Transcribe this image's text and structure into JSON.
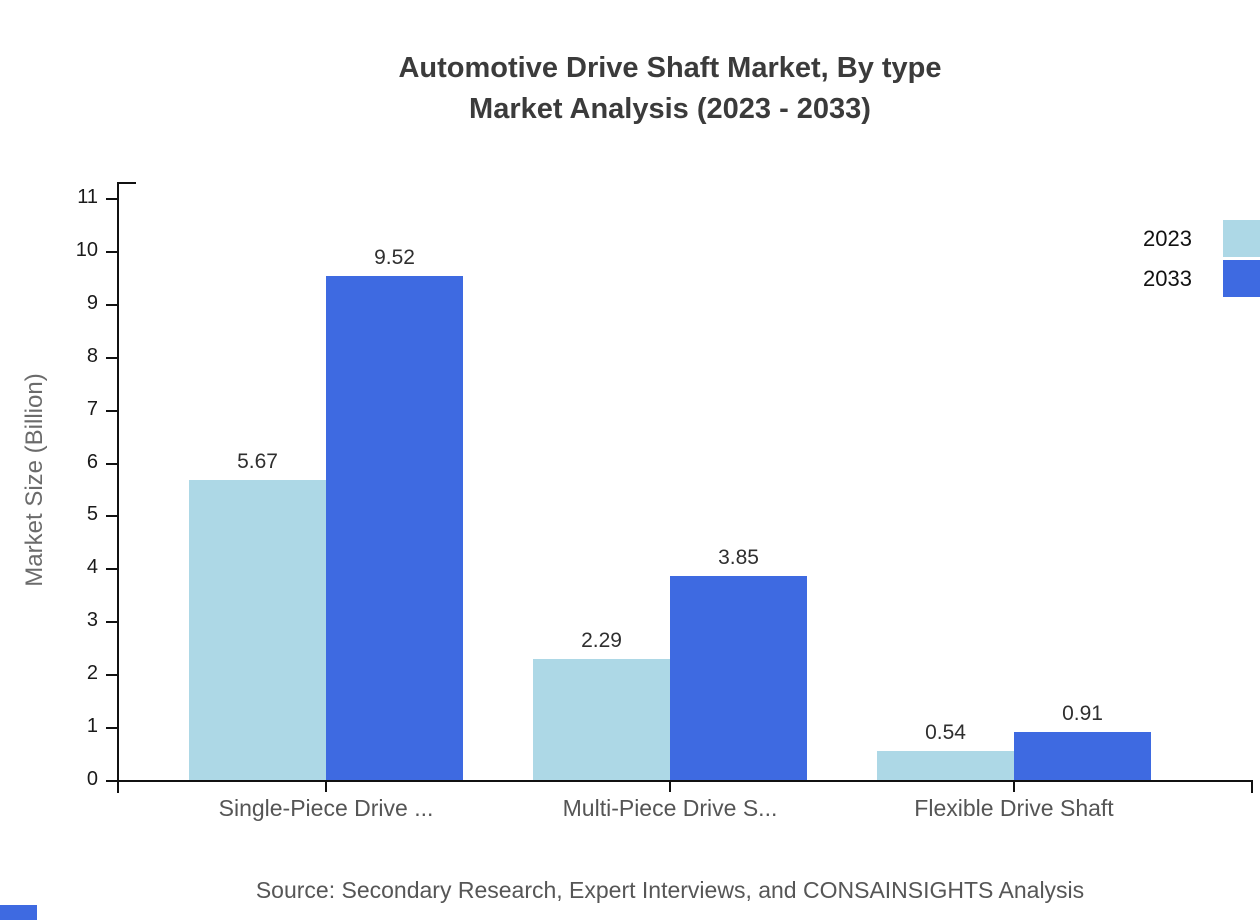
{
  "title": {
    "line1": "Automotive Drive Shaft Market, By type",
    "line2": "Market Analysis (2023 - 2033)"
  },
  "source_note": "Source: Secondary Research, Expert Interviews, and CONSAINSIGHTS Analysis",
  "colors": {
    "series_2023": "#ADD8E6",
    "series_2033": "#3E6AE1",
    "axis": "#111111",
    "title_text": "#3b3b3b",
    "category_text": "#555555",
    "brand_block": "#3E6AE1"
  },
  "chart_data": {
    "type": "bar",
    "title": "Automotive Drive Shaft Market, By type Market Analysis (2023 - 2033)",
    "categories": [
      "Single-Piece Drive ...",
      "Multi-Piece Drive S...",
      "Flexible Drive Shaft"
    ],
    "series": [
      {
        "name": "2023",
        "color": "#ADD8E6",
        "values": [
          5.67,
          2.29,
          0.54
        ]
      },
      {
        "name": "2033",
        "color": "#3E6AE1",
        "values": [
          9.52,
          3.85,
          0.91
        ]
      }
    ],
    "xlabel": "",
    "ylabel": "Market Size (Billion)",
    "ylim": [
      0,
      11.3
    ],
    "yticks": [
      0,
      1,
      2,
      3,
      4,
      5,
      6,
      7,
      8,
      9,
      10,
      11
    ],
    "grid": false,
    "legend_position": "top-right",
    "value_labels": true,
    "value_decimals": 2
  }
}
